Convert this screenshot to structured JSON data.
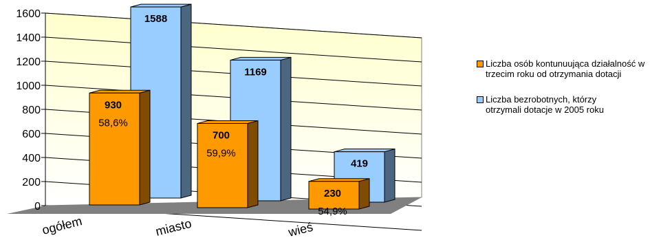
{
  "chart_data": {
    "type": "bar",
    "categories": [
      "ogółem",
      "miasto",
      "wieś"
    ],
    "series": [
      {
        "name": "Liczba osób kontunuująca działalność w trzecim roku od otrzymania dotacji",
        "values": [
          930,
          700,
          230
        ],
        "percent_labels": [
          "58,6%",
          "59,9%",
          "54,9%"
        ],
        "color": "#ff9900",
        "side_color": "#7f4c00"
      },
      {
        "name": "Liczba bezrobotnych, którzy otrzymali dotacje w 2005 roku",
        "values": [
          1588,
          1169,
          419
        ],
        "color": "#99ccff",
        "side_color": "#4d6680"
      }
    ],
    "y_ticks": [
      "0",
      "200",
      "400",
      "600",
      "800",
      "1000",
      "1200",
      "1400",
      "1600"
    ],
    "ylim": [
      0,
      1600
    ],
    "grid": true,
    "legend_position": "right",
    "wall_color_top": "#ffffcc",
    "wall_color_bottom": "#ffffff",
    "floor_color": "#808080"
  }
}
